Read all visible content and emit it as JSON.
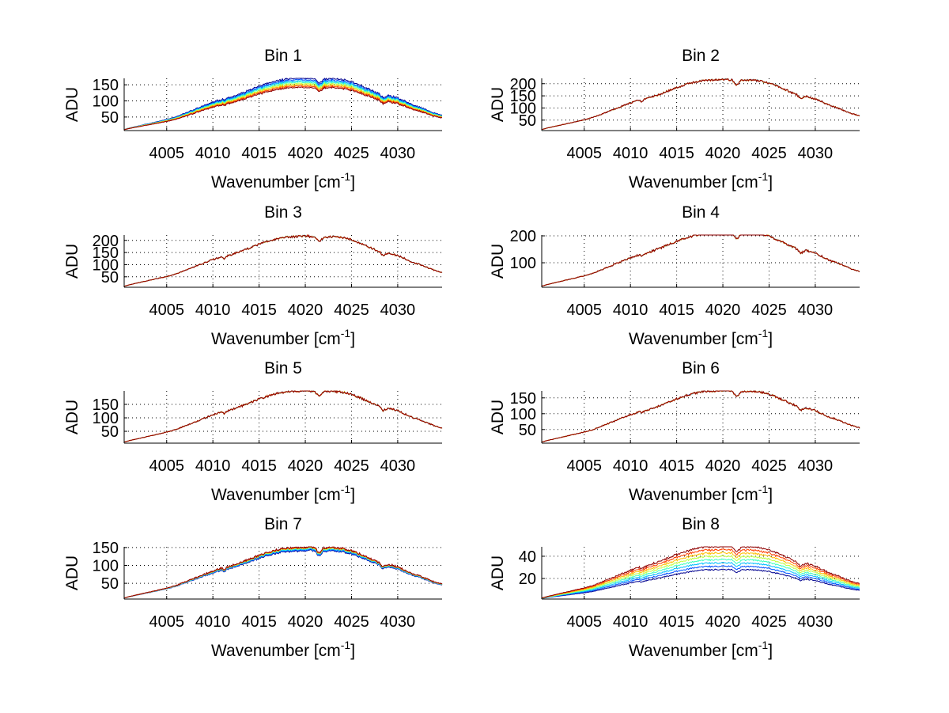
{
  "chart_data": [
    {
      "type": "line",
      "title": "Bin 1",
      "xlabel": "Wavenumber [cm",
      "xlabel_sup": "-1",
      "xlabel_end": "]",
      "ylabel": "ADU",
      "xlim": [
        4000.4,
        4034.8
      ],
      "ylim": [
        8,
        170
      ],
      "xticks": [
        4005,
        4010,
        4015,
        4020,
        4025,
        4030
      ],
      "yticks": [
        50,
        100,
        150
      ],
      "grid": true,
      "series_peaks": [
        165,
        160,
        156,
        152,
        148,
        144,
        140,
        136
      ],
      "series_order": "blue-top"
    },
    {
      "type": "line",
      "title": "Bin 2",
      "xlabel": "Wavenumber [cm",
      "xlabel_sup": "-1",
      "xlabel_end": "]",
      "ylabel": "ADU",
      "xlim": [
        4000.4,
        4034.8
      ],
      "ylim": [
        7,
        222
      ],
      "xticks": [
        4005,
        4010,
        4015,
        4020,
        4025,
        4030
      ],
      "yticks": [
        50,
        100,
        150,
        200
      ],
      "grid": true,
      "series_peaks": [
        212,
        212,
        212,
        212,
        212,
        212,
        212,
        212
      ],
      "series_order": "overlap"
    },
    {
      "type": "line",
      "title": "Bin 3",
      "xlabel": "Wavenumber [cm",
      "xlabel_sup": "-1",
      "xlabel_end": "]",
      "ylabel": "ADU",
      "xlim": [
        4000.4,
        4034.8
      ],
      "ylim": [
        7,
        222
      ],
      "xticks": [
        4005,
        4010,
        4015,
        4020,
        4025,
        4030
      ],
      "yticks": [
        50,
        100,
        150,
        200
      ],
      "grid": true,
      "series_peaks": [
        212,
        212,
        212,
        212,
        212,
        212,
        212,
        212
      ],
      "series_order": "overlap"
    },
    {
      "type": "line",
      "title": "Bin 4",
      "xlabel": "Wavenumber [cm",
      "xlabel_sup": "-1",
      "xlabel_end": "]",
      "ylabel": "ADU",
      "xlim": [
        4000.4,
        4034.8
      ],
      "ylim": [
        9,
        203
      ],
      "xticks": [
        4005,
        4010,
        4015,
        4020,
        4025,
        4030
      ],
      "yticks": [
        100,
        200
      ],
      "grid": true,
      "series_peaks": [
        205,
        205,
        205,
        205,
        205,
        205,
        205,
        205
      ],
      "series_order": "overlap"
    },
    {
      "type": "line",
      "title": "Bin 5",
      "xlabel": "Wavenumber [cm",
      "xlabel_sup": "-1",
      "xlabel_end": "]",
      "ylabel": "ADU",
      "xlim": [
        4000.4,
        4034.8
      ],
      "ylim": [
        6,
        200
      ],
      "xticks": [
        4005,
        4010,
        4015,
        4020,
        4025,
        4030
      ],
      "yticks": [
        50,
        100,
        150
      ],
      "grid": true,
      "series_peaks": [
        196,
        196,
        196,
        196,
        196,
        196,
        196,
        196
      ],
      "series_order": "overlap"
    },
    {
      "type": "line",
      "title": "Bin 6",
      "xlabel": "Wavenumber [cm",
      "xlabel_sup": "-1",
      "xlabel_end": "]",
      "ylabel": "ADU",
      "xlim": [
        4000.4,
        4034.8
      ],
      "ylim": [
        7,
        172
      ],
      "xticks": [
        4005,
        4010,
        4015,
        4020,
        4025,
        4030
      ],
      "yticks": [
        50,
        100,
        150
      ],
      "grid": true,
      "series_peaks": [
        168,
        168,
        168,
        168,
        168,
        168,
        168,
        168
      ],
      "series_order": "overlap"
    },
    {
      "type": "line",
      "title": "Bin 7",
      "xlabel": "Wavenumber [cm",
      "xlabel_sup": "-1",
      "xlabel_end": "]",
      "ylabel": "ADU",
      "xlim": [
        4000.4,
        4034.8
      ],
      "ylim": [
        6,
        152
      ],
      "xticks": [
        4005,
        4010,
        4015,
        4020,
        4025,
        4030
      ],
      "yticks": [
        50,
        100,
        150
      ],
      "grid": true,
      "series_peaks": [
        137,
        139,
        141,
        143,
        144,
        145,
        146,
        147
      ],
      "series_order": "red-top"
    },
    {
      "type": "line",
      "title": "Bin 8",
      "xlabel": "Wavenumber [cm",
      "xlabel_sup": "-1",
      "xlabel_end": "]",
      "ylabel": "ADU",
      "xlim": [
        4000.4,
        4034.8
      ],
      "ylim": [
        1.5,
        48.5
      ],
      "xticks": [
        4005,
        4010,
        4015,
        4020,
        4025,
        4030
      ],
      "yticks": [
        20,
        40
      ],
      "grid": true,
      "series_peaks": [
        27,
        30,
        33,
        36,
        39,
        42,
        45,
        48
      ],
      "series_order": "red-top"
    }
  ],
  "shared": {
    "series_colors": [
      "#00008f",
      "#0050ff",
      "#00bfff",
      "#40ffbf",
      "#bfff40",
      "#ffbf00",
      "#ff4000",
      "#8f0000"
    ],
    "profile_x": [
      4000.4,
      4001,
      4002,
      4003,
      4004,
      4005,
      4006,
      4007,
      4008,
      4009,
      4010,
      4011,
      4011.2,
      4011.5,
      4012,
      4013,
      4014,
      4015,
      4016,
      4017,
      4018,
      4019,
      4020,
      4021,
      4021.5,
      4022,
      4023,
      4024,
      4025,
      4026,
      4027,
      4028,
      4028.4,
      4029,
      4030,
      4031,
      4031.8,
      4032,
      4033,
      4034,
      4034.8
    ],
    "profile_y": [
      0.02,
      0.05,
      0.09,
      0.13,
      0.17,
      0.21,
      0.26,
      0.33,
      0.4,
      0.47,
      0.54,
      0.6,
      0.56,
      0.61,
      0.64,
      0.7,
      0.77,
      0.84,
      0.9,
      0.95,
      0.98,
      0.99,
      1.0,
      0.99,
      0.88,
      0.98,
      0.99,
      0.97,
      0.93,
      0.86,
      0.78,
      0.7,
      0.62,
      0.67,
      0.62,
      0.54,
      0.47,
      0.47,
      0.4,
      0.33,
      0.29
    ]
  }
}
